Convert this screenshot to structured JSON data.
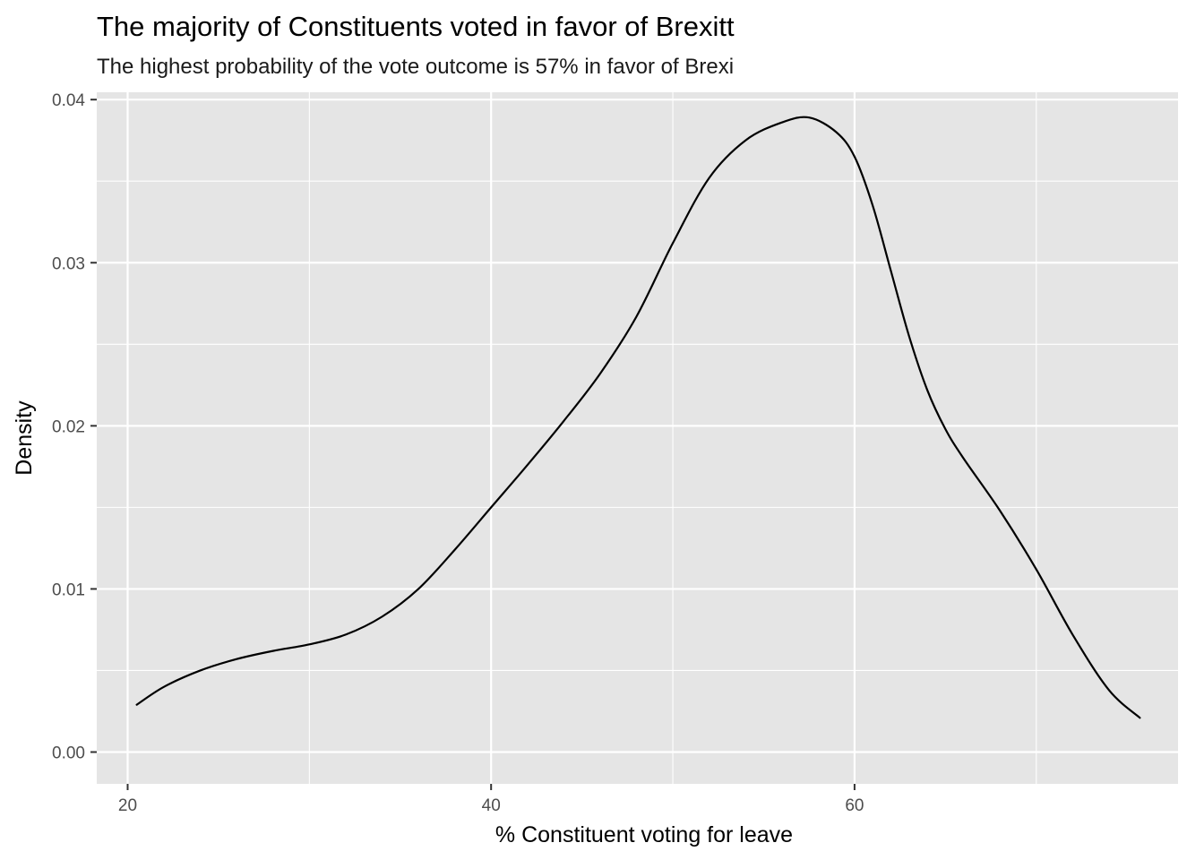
{
  "chart_data": {
    "type": "area",
    "geom": "density",
    "title": "The majority of Constituents voted in favor of Brexitt",
    "subtitle": "The highest probability of the vote outcome is 57% in favor of Brexi",
    "xlabel": "% Constituent voting for leave",
    "ylabel": "Density",
    "xlim": [
      18.3,
      77.8
    ],
    "ylim": [
      -0.00195,
      0.04045
    ],
    "x_ticks": [
      20,
      40,
      60
    ],
    "x_tick_labels": [
      "20",
      "40",
      "60"
    ],
    "x_minor_ticks": [
      30,
      50,
      70
    ],
    "y_ticks": [
      0.0,
      0.01,
      0.02,
      0.03,
      0.04
    ],
    "y_tick_labels": [
      "0.00",
      "0.01",
      "0.02",
      "0.03",
      "0.04"
    ],
    "y_minor_ticks": [
      0.005,
      0.015,
      0.025,
      0.035
    ],
    "grid": true,
    "legend": "none",
    "colors": {
      "panel_background": "#e5e5e5",
      "grid_line": "#ffffff",
      "curve": "#000000",
      "tick_mark": "#333333"
    },
    "x": [
      20.5,
      22,
      24,
      26,
      28,
      30,
      32,
      34,
      36,
      38,
      40,
      42,
      44,
      46,
      48,
      50,
      52,
      54,
      56,
      57.5,
      59,
      60,
      61,
      62,
      63,
      64,
      65,
      66,
      68,
      70,
      72,
      74,
      75.7
    ],
    "values": [
      0.0029,
      0.004,
      0.005,
      0.0057,
      0.0062,
      0.0066,
      0.0072,
      0.0083,
      0.01,
      0.0124,
      0.015,
      0.0176,
      0.0203,
      0.0232,
      0.0267,
      0.0312,
      0.0352,
      0.0375,
      0.0386,
      0.0389,
      0.038,
      0.0365,
      0.0335,
      0.0295,
      0.0255,
      0.0222,
      0.0198,
      0.018,
      0.0148,
      0.0112,
      0.0072,
      0.0038,
      0.0021
    ]
  }
}
